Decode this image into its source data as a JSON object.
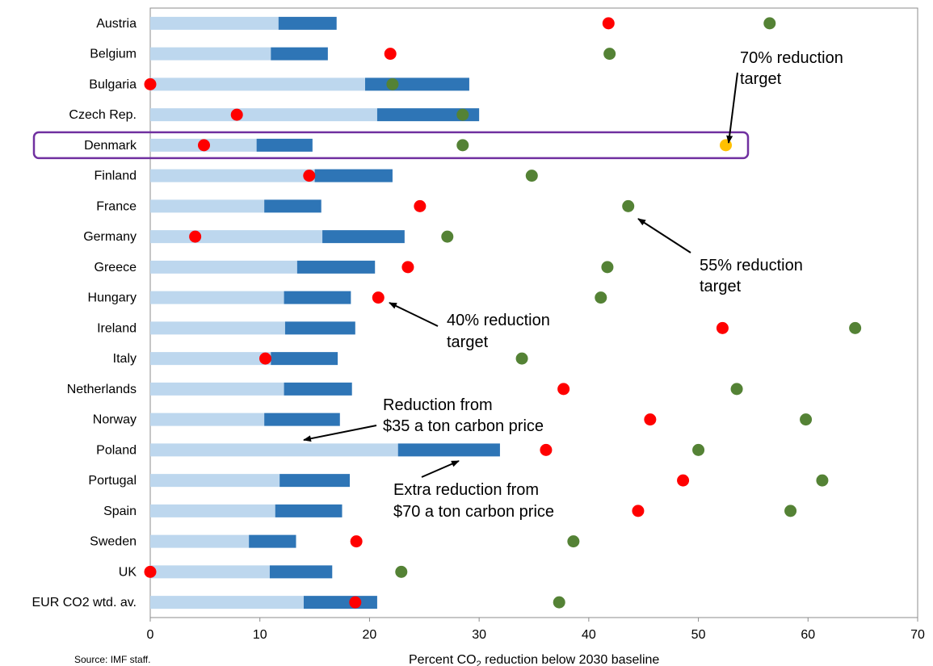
{
  "chart_data": {
    "type": "bar",
    "categories": [
      "Austria",
      "Belgium",
      "Bulgaria",
      "Czech Rep.",
      "Denmark",
      "Finland",
      "France",
      "Germany",
      "Greece",
      "Hungary",
      "Ireland",
      "Italy",
      "Netherlands",
      "Norway",
      "Poland",
      "Portugal",
      "Spain",
      "Sweden",
      "UK",
      "EUR CO2 wtd. av."
    ],
    "series": [
      {
        "name": "Reduction from $35 a ton carbon price",
        "kind": "stacked-bar",
        "color": "#bdd7ee",
        "values": [
          11.7,
          11.0,
          19.6,
          20.7,
          9.7,
          15.0,
          10.4,
          15.7,
          13.4,
          12.2,
          12.3,
          11.0,
          12.2,
          10.4,
          22.6,
          11.8,
          11.4,
          9.0,
          10.9,
          14.0
        ]
      },
      {
        "name": "Extra reduction from $70 a ton carbon price",
        "kind": "stacked-bar",
        "color": "#2e75b6",
        "values": [
          5.3,
          5.2,
          9.5,
          9.3,
          5.1,
          7.1,
          5.2,
          7.5,
          7.1,
          6.1,
          6.4,
          6.1,
          6.2,
          6.9,
          9.3,
          6.4,
          6.1,
          4.3,
          5.7,
          6.7
        ]
      },
      {
        "name": "40% reduction target",
        "kind": "dot",
        "color": "#ff0000",
        "values": [
          41.8,
          21.9,
          0.0,
          7.9,
          4.9,
          14.5,
          24.6,
          4.1,
          23.5,
          20.8,
          52.2,
          10.5,
          37.7,
          45.6,
          36.1,
          48.6,
          44.5,
          18.8,
          0.0,
          18.7
        ]
      },
      {
        "name": "55% reduction target",
        "kind": "dot",
        "color": "#548235",
        "values": [
          56.5,
          41.9,
          22.1,
          28.5,
          28.5,
          34.8,
          43.6,
          27.1,
          41.7,
          41.1,
          64.3,
          33.9,
          53.5,
          59.8,
          50.0,
          61.3,
          58.4,
          38.6,
          22.9,
          37.3
        ]
      },
      {
        "name": "70% reduction target",
        "kind": "dot",
        "color": "#ffc000",
        "values": [
          null,
          null,
          null,
          null,
          52.5,
          null,
          null,
          null,
          null,
          null,
          null,
          null,
          null,
          null,
          null,
          null,
          null,
          null,
          null,
          null
        ]
      }
    ],
    "highlight": "Denmark",
    "xlabel_main": "Percent CO",
    "xlabel_sub": "2",
    "xlabel_rest": " reduction below 2030 baseline",
    "xlim": [
      0,
      70
    ],
    "xticks": [
      "0",
      "10",
      "20",
      "30",
      "40",
      "50",
      "60",
      "70"
    ],
    "grid": false,
    "annotations": {
      "a70_l1": "70% reduction",
      "a70_l2": "target",
      "a55_l1": "55% reduction",
      "a55_l2": "target",
      "a40_l1": "40% reduction",
      "a40_l2": "target",
      "r35_l1": "Reduction from",
      "r35_l2": "$35 a ton carbon price",
      "r70_l1": "Extra reduction from",
      "r70_l2": "$70 a ton carbon price"
    },
    "source": "Source: IMF staff."
  }
}
